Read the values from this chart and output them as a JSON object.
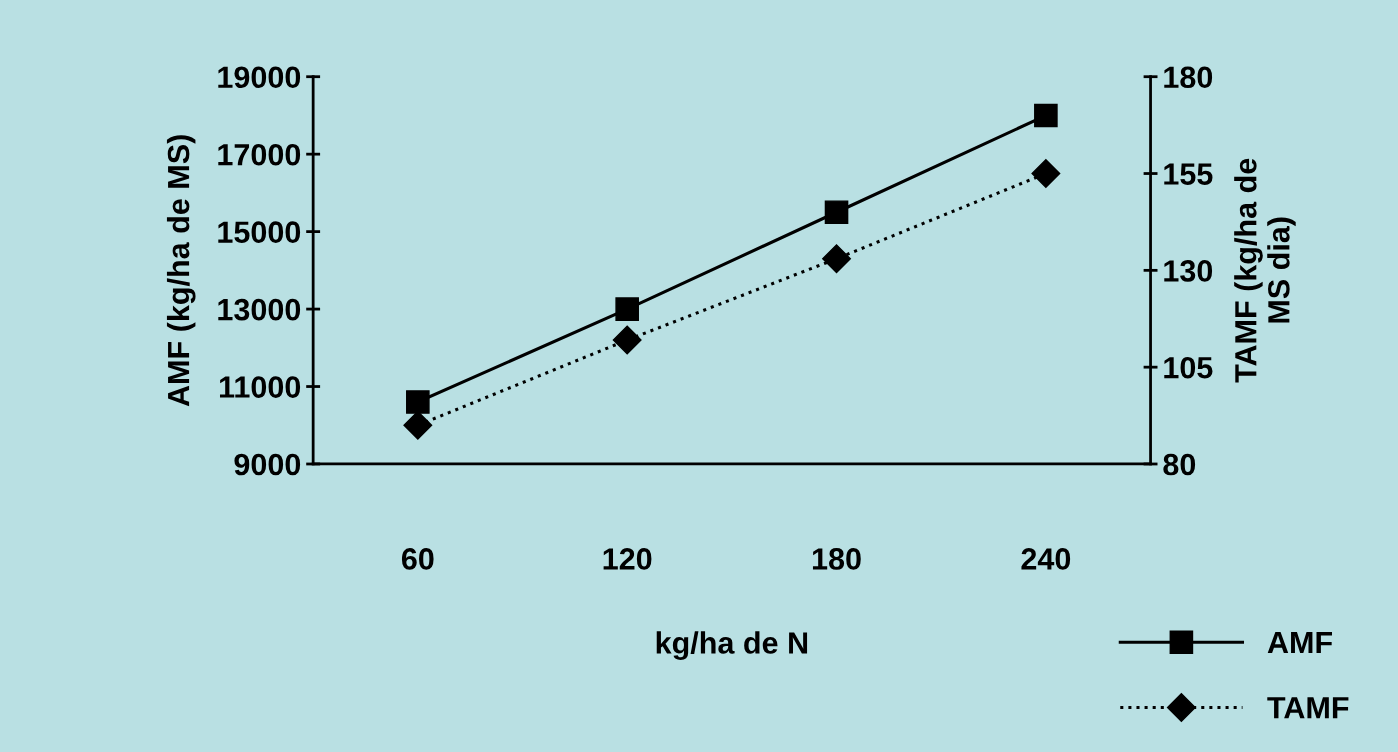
{
  "chart_data": {
    "type": "line",
    "xlabel": "kg/ha de N",
    "ylabel": "AMF (kg/ha de MS)",
    "y2label": "TAMF (kg/ha de\nMS dia)",
    "categories": [
      "60",
      "120",
      "180",
      "240"
    ],
    "series": [
      {
        "name": "AMF",
        "color": "#000000",
        "values": [
          10600,
          13000,
          15500,
          18000
        ],
        "marker": "square",
        "line_style": "solid"
      },
      {
        "name": "TAMF",
        "color": "#000000",
        "values": [
          90,
          112,
          133,
          155
        ],
        "marker": "diamond",
        "line_style": "dotted",
        "axis": "y2"
      }
    ],
    "ylim": [
      9000,
      19000
    ],
    "yticks": [
      9000,
      11000,
      13000,
      15000,
      17000,
      19000
    ],
    "y2lim": [
      80,
      180
    ],
    "y2ticks": [
      80,
      105,
      130,
      155,
      180
    ],
    "grid": false,
    "legend": "bottom right"
  }
}
